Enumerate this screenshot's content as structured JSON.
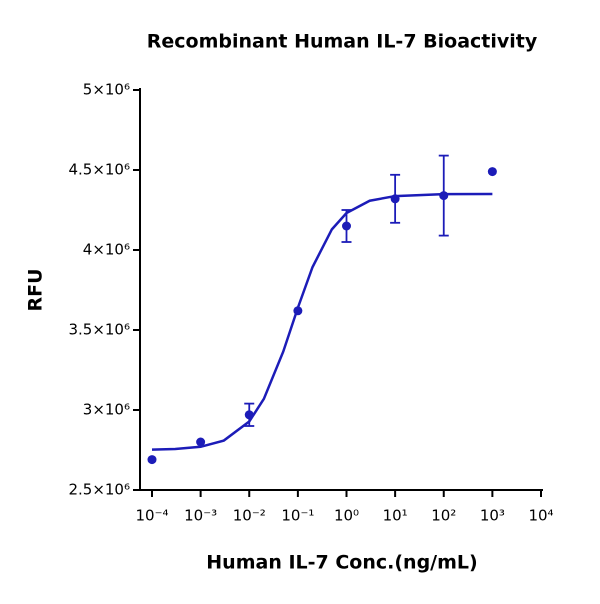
{
  "chart_data": {
    "type": "scatter",
    "title": "Recombinant Human IL-7 Bioactivity",
    "x_label": "Human IL-7 Conc.(ng/mL)",
    "y_label": "RFU",
    "log_x": true,
    "xlim": [
      0.0001,
      10000
    ],
    "xticks": [
      {
        "value": 0.0001,
        "label": "10⁻⁴"
      },
      {
        "value": 0.001,
        "label": "10⁻³"
      },
      {
        "value": 0.01,
        "label": "10⁻²"
      },
      {
        "value": 0.1,
        "label": "10⁻¹"
      },
      {
        "value": 1,
        "label": "10⁰"
      },
      {
        "value": 10,
        "label": "10¹"
      },
      {
        "value": 100,
        "label": "10²"
      },
      {
        "value": 1000,
        "label": "10³"
      },
      {
        "value": 10000,
        "label": "10⁴"
      }
    ],
    "ylim": [
      2500000,
      5000000
    ],
    "yticks": [
      {
        "value": 2500000,
        "label": "2.5×10⁶"
      },
      {
        "value": 3000000,
        "label": "3×10⁶"
      },
      {
        "value": 3500000,
        "label": "3.5×10⁶"
      },
      {
        "value": 4000000,
        "label": "4×10⁶"
      },
      {
        "value": 4500000,
        "label": "4.5×10⁶"
      },
      {
        "value": 5000000,
        "label": "5×10⁶"
      }
    ],
    "series": [
      {
        "type": "scatter",
        "color": "#1c1cb8",
        "x": [
          0.0001,
          0.001,
          0.01,
          0.1,
          1,
          10,
          100,
          1000
        ],
        "values": [
          2690000,
          2800000,
          2970000,
          3620000,
          4150000,
          4320000,
          4340000,
          4490000
        ],
        "errors": [
          null,
          null,
          70000,
          null,
          100000,
          150000,
          250000,
          null
        ]
      },
      {
        "type": "line",
        "color": "#1c1cb8",
        "x": [
          0.0001,
          0.0003,
          0.001,
          0.003,
          0.01,
          0.02,
          0.05,
          0.1,
          0.2,
          0.5,
          1,
          3,
          10,
          100,
          1000
        ],
        "values": [
          2752000,
          2756000,
          2770000,
          2809000,
          2928000,
          3070000,
          3365000,
          3639000,
          3893000,
          4129000,
          4231000,
          4308000,
          4337000,
          4349000,
          4350000
        ]
      }
    ]
  }
}
